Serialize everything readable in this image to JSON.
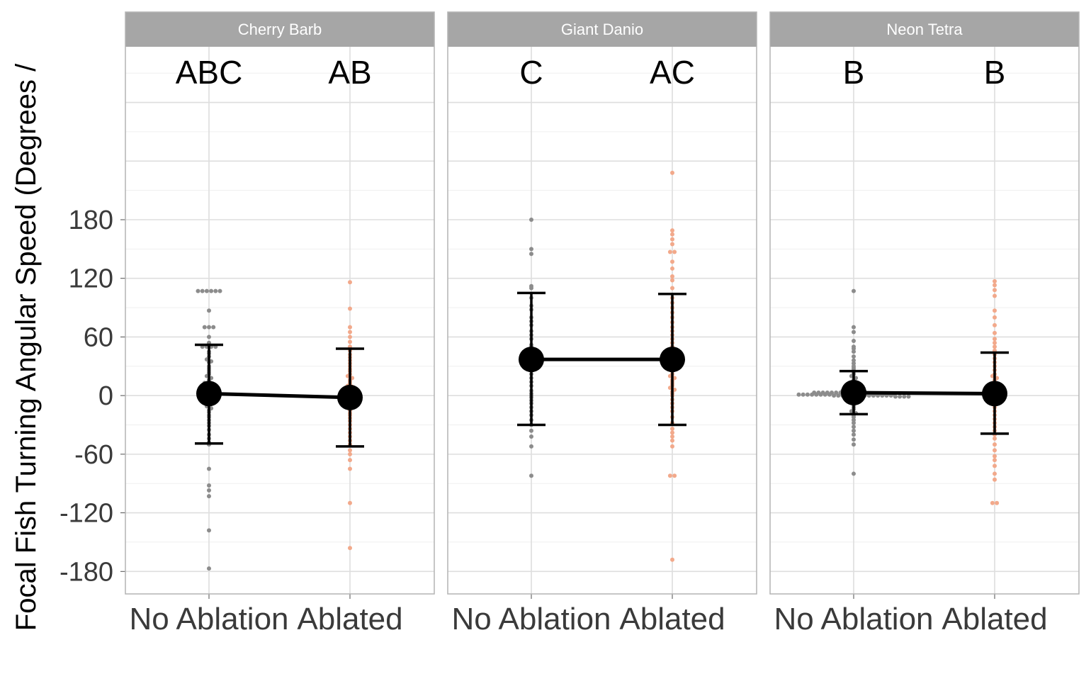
{
  "chart_data": {
    "type": "scatter",
    "ylabel": "Focal Fish Turning Angular Speed (Degrees /",
    "yticks": [
      -180,
      -120,
      -60,
      0,
      60,
      120,
      180
    ],
    "ylim": [
      -203,
      357
    ],
    "categories": [
      "No Ablation",
      "Ablated"
    ],
    "colors": {
      "No Ablation": "#8c8c8c",
      "Ablated": "#f2a98b",
      "strip_bg": "#a6a6a6",
      "mean": "#000000"
    },
    "grid": true,
    "panels": [
      {
        "name": "Cherry Barb",
        "letters": [
          "ABC",
          "AB"
        ],
        "groups": [
          {
            "category": "No Ablation",
            "mean": 2,
            "lower": -49,
            "upper": 52,
            "points": [
              107,
              107,
              107,
              107,
              107,
              107,
              87,
              70,
              70,
              70,
              60,
              54,
              50,
              50,
              50,
              50,
              45,
              43,
              40,
              37,
              35,
              34,
              30,
              28,
              26,
              24,
              22,
              20,
              18,
              16,
              14,
              13,
              12,
              11,
              10,
              9,
              8,
              7,
              6,
              5,
              4,
              3,
              2,
              1,
              0,
              0,
              -1,
              -2,
              -3,
              -4,
              -5,
              -7,
              -9,
              -11,
              -13,
              -15,
              -17,
              -20,
              -22,
              -25,
              -28,
              -31,
              -35,
              -40,
              -44,
              -48,
              -50,
              -75,
              -92,
              -97,
              -103,
              -138,
              -177
            ]
          },
          {
            "category": "Ablated",
            "mean": -2,
            "lower": -52,
            "upper": 48,
            "points": [
              116,
              89,
              70,
              65,
              60,
              55,
              50,
              46,
              42,
              39,
              36,
              33,
              30,
              27,
              25,
              22,
              20,
              18,
              16,
              14,
              12,
              10,
              9,
              8,
              7,
              6,
              5,
              4,
              3,
              2,
              1,
              0,
              -1,
              -2,
              -4,
              -6,
              -8,
              -10,
              -12,
              -15,
              -18,
              -20,
              -23,
              -26,
              -30,
              -34,
              -38,
              -42,
              -46,
              -50,
              -56,
              -60,
              -66,
              -75,
              -110,
              -156
            ]
          }
        ]
      },
      {
        "name": "Giant Danio",
        "letters": [
          "C",
          "AC"
        ],
        "groups": [
          {
            "category": "No Ablation",
            "mean": 37,
            "lower": -30,
            "upper": 105,
            "points": [
              180,
              150,
              145,
              112,
              110,
              100,
              92,
              88,
              80,
              76,
              72,
              66,
              62,
              58,
              52,
              50,
              45,
              40,
              35,
              30,
              26,
              22,
              18,
              14,
              10,
              5,
              2,
              0,
              -2,
              -5,
              -8,
              -12,
              -16,
              -20,
              -25,
              -30,
              -36,
              -42,
              -52,
              -82
            ]
          },
          {
            "category": "Ablated",
            "mean": 37,
            "lower": -30,
            "upper": 104,
            "points": [
              228,
              169,
              165,
              160,
              155,
              147,
              147,
              137,
              130,
              122,
              118,
              110,
              100,
              95,
              90,
              85,
              80,
              75,
              70,
              66,
              62,
              58,
              54,
              50,
              46,
              42,
              38,
              35,
              32,
              28,
              25,
              22,
              20,
              18,
              16,
              14,
              12,
              10,
              8,
              6,
              4,
              2,
              0,
              -4,
              -8,
              -12,
              -16,
              -22,
              -28,
              -34,
              -38,
              -42,
              -46,
              -52,
              -82,
              -82,
              -168
            ]
          }
        ]
      },
      {
        "name": "Neon Tetra",
        "letters": [
          "B",
          "B"
        ],
        "groups": [
          {
            "category": "No Ablation",
            "mean": 3,
            "lower": -19,
            "upper": 25,
            "points": [
              107,
              70,
              65,
              56,
              50,
              48,
              45,
              40,
              36,
              33,
              30,
              28,
              26,
              24,
              22,
              20,
              18,
              16,
              14,
              12,
              10,
              9,
              8,
              7,
              6,
              5,
              5,
              4,
              4,
              4,
              4,
              3,
              3,
              3,
              3,
              3,
              3,
              3,
              3,
              3,
              3,
              2,
              2,
              2,
              2,
              2,
              2,
              2,
              2,
              2,
              1,
              1,
              1,
              1,
              1,
              1,
              1,
              1,
              0,
              0,
              0,
              0,
              0,
              0,
              0,
              0,
              0,
              0,
              0,
              0,
              0,
              0,
              -1,
              -1,
              -1,
              -1,
              -2,
              -2,
              -2,
              -3,
              -3,
              -4,
              -5,
              -6,
              -8,
              -10,
              -12,
              -14,
              -16,
              -18,
              -20,
              -22,
              -25,
              -28,
              -32,
              -36,
              -40,
              -45,
              -50,
              -80
            ]
          },
          {
            "category": "Ablated",
            "mean": 2,
            "lower": -39,
            "upper": 44,
            "points": [
              117,
              113,
              108,
              102,
              87,
              80,
              72,
              64,
              58,
              54,
              50,
              46,
              42,
              38,
              34,
              30,
              26,
              22,
              20,
              18,
              16,
              14,
              12,
              10,
              8,
              6,
              5,
              4,
              3,
              2,
              1,
              0,
              -1,
              -2,
              -3,
              -5,
              -8,
              -12,
              -16,
              -20,
              -24,
              -28,
              -32,
              -36,
              -40,
              -44,
              -50,
              -56,
              -62,
              -66,
              -72,
              -80,
              -86,
              -110,
              -110
            ]
          }
        ]
      }
    ]
  }
}
